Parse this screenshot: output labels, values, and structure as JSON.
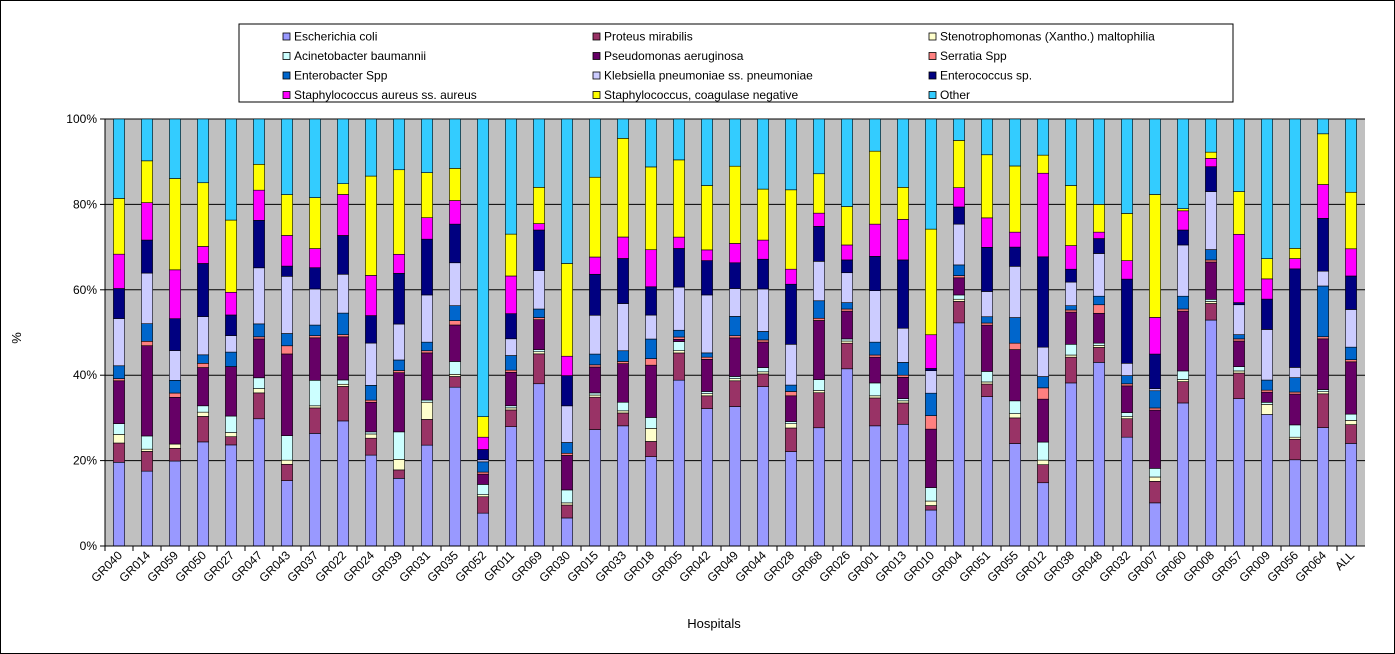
{
  "chart_data": {
    "type": "bar",
    "stacked": true,
    "percent": true,
    "xlabel": "Hospitals",
    "ylabel": "%",
    "ylim": [
      0,
      100
    ],
    "yticks": [
      "0%",
      "20%",
      "40%",
      "60%",
      "80%",
      "100%"
    ],
    "grid": true,
    "legend_position": "top",
    "plot_background": "#c0c0c0",
    "categories": [
      "GR040",
      "GR014",
      "GR059",
      "GR050",
      "GR027",
      "GR047",
      "GR043",
      "GR037",
      "GR022",
      "GR024",
      "GR039",
      "GR031",
      "GR035",
      "GR052",
      "GR011",
      "GR069",
      "GR030",
      "GR015",
      "GR033",
      "GR018",
      "GR005",
      "GR042",
      "GR049",
      "GR044",
      "GR028",
      "GR068",
      "GR026",
      "GR001",
      "GR013",
      "GR010",
      "GR004",
      "GR051",
      "GR055",
      "GR012",
      "GR038",
      "GR048",
      "GR032",
      "GR007",
      "GR060",
      "GR008",
      "GR057",
      "GR009",
      "GR056",
      "GR064",
      "ALL"
    ],
    "series": [
      {
        "name": "Escherichia coli",
        "color": "#9999ff",
        "values": [
          19.5,
          17,
          20,
          24.5,
          24.5,
          29.5,
          16,
          26.5,
          29,
          21.5,
          16,
          23.5,
          37,
          8,
          28.5,
          38,
          6.5,
          27,
          28,
          20.5,
          36.5,
          32,
          32.5,
          37.5,
          22,
          27,
          41.5,
          28,
          28.5,
          8,
          52,
          35.5,
          24,
          14,
          38,
          43,
          26.5,
          10,
          33.5,
          54.5,
          34.5,
          32.5,
          21,
          28,
          24.5
        ]
      },
      {
        "name": "Proteus mirabilis",
        "color": "#993366",
        "values": [
          4.5,
          4.5,
          3,
          6,
          2,
          6,
          4,
          6,
          8,
          4,
          2,
          6,
          2.5,
          4,
          4,
          7,
          3,
          7.5,
          3,
          3.5,
          6,
          3,
          6,
          3,
          5.5,
          8,
          6,
          6.5,
          5,
          1,
          5,
          3,
          6,
          4,
          6,
          3.5,
          4.5,
          5,
          5,
          4,
          6,
          0,
          5,
          8,
          4.5
        ]
      },
      {
        "name": "Stenotrophomonas (Xantho.) maltophilia",
        "color": "#ffffcc",
        "values": [
          2,
          0.5,
          1,
          1,
          1,
          1,
          1,
          0.5,
          0.5,
          1,
          2.5,
          4,
          0.5,
          0.5,
          0.5,
          0.5,
          0.5,
          0.5,
          0.5,
          3,
          0.5,
          0.5,
          0.5,
          0.5,
          1,
          0.5,
          0.5,
          0.5,
          0.5,
          1,
          0.5,
          0.5,
          1,
          1,
          0.5,
          0.5,
          0.5,
          1,
          0.5,
          0.5,
          0.5,
          2.5,
          0.5,
          0.5,
          1
        ]
      },
      {
        "name": "Acinetobacter baumannii",
        "color": "#ccffff",
        "values": [
          2.5,
          3,
          0,
          1.5,
          4,
          2.5,
          6,
          6,
          1,
          0.5,
          6.5,
          0.5,
          3,
          2.5,
          0.5,
          0.5,
          3,
          0.5,
          2,
          2.5,
          2,
          0.5,
          0.5,
          1,
          0.5,
          2.5,
          0.5,
          3,
          0.5,
          3,
          1,
          2.5,
          3,
          4,
          2.5,
          0.5,
          1,
          2,
          2,
          0.5,
          1,
          0.5,
          3,
          0.5,
          1.5
        ]
      },
      {
        "name": "Pseudomonas aeruginosa",
        "color": "#660066",
        "values": [
          10,
          20.5,
          11,
          9,
          12,
          9,
          20,
          10,
          10,
          7,
          14,
          11,
          8.5,
          2.5,
          8,
          7,
          8,
          6,
          9,
          12,
          0.5,
          7.5,
          9,
          6,
          6,
          13.5,
          6.5,
          6,
          5,
          13,
          4,
          11,
          12,
          9.5,
          7.5,
          7,
          6.5,
          13.5,
          14,
          9,
          6,
          2.5,
          7.5,
          12,
          12.5
        ]
      },
      {
        "name": "Serratia Spp",
        "color": "#ff8080",
        "values": [
          0.5,
          1,
          1,
          1,
          0,
          0.5,
          2,
          0.5,
          0.5,
          0.5,
          0.5,
          0.5,
          1,
          0.5,
          0.5,
          0.5,
          0.5,
          0.5,
          0.5,
          1.5,
          0.5,
          0.5,
          0.5,
          0.5,
          1,
          0.5,
          0.5,
          0.5,
          0.5,
          3,
          0.5,
          0.5,
          1.5,
          2.5,
          0.5,
          2,
          0.5,
          0.5,
          0.5,
          0.5,
          0.5,
          0.5,
          0.5,
          0.5,
          0.5
        ]
      },
      {
        "name": "Enterobacter Spp",
        "color": "#0066cc",
        "values": [
          3,
          4,
          3,
          2,
          3.5,
          3,
          3,
          2.5,
          5,
          3.5,
          2.5,
          2,
          3.5,
          2.5,
          3.5,
          2,
          2.5,
          2.5,
          2.5,
          4.5,
          1.5,
          1,
          4.5,
          2,
          1.5,
          4,
          1.5,
          3,
          3,
          5,
          2.5,
          1.5,
          6,
          2.5,
          1,
          2,
          2,
          4,
          3,
          2.5,
          1,
          2.5,
          3.5,
          12,
          3
        ]
      },
      {
        "name": "Klebsiella pneumoniae ss. pneumoniae",
        "color": "#ccccff",
        "values": [
          11,
          11.5,
          7,
          9,
          4,
          13,
          14,
          8.5,
          9,
          10,
          8.5,
          11,
          10,
          0.5,
          4,
          9,
          8.5,
          9,
          11,
          5.5,
          9.5,
          13.5,
          6.5,
          10,
          9.5,
          9,
          7,
          12,
          8,
          5,
          9.5,
          6,
          12,
          6.5,
          5.5,
          10,
          3,
          0.5,
          12,
          14,
          7,
          12.5,
          2.5,
          3.5,
          9
        ]
      },
      {
        "name": "Enterococcus sp.",
        "color": "#000080",
        "values": [
          7,
          7.5,
          7.5,
          12.5,
          5,
          11,
          2.5,
          5,
          9,
          6.5,
          12,
          13,
          9,
          2.5,
          6,
          9.5,
          7,
          9.5,
          10.5,
          6.5,
          8.5,
          8,
          6,
          7,
          14,
          8,
          3,
          8,
          16,
          0.5,
          4,
          10.5,
          4.5,
          20,
          3,
          3.5,
          20.5,
          8,
          3.5,
          6,
          0.5,
          7.5,
          24,
          12.5,
          8
        ]
      },
      {
        "name": "Staphylococcus aureus ss. aureus",
        "color": "#ff00ff",
        "values": [
          8,
          8.5,
          11.5,
          4,
          5.5,
          7,
          7.5,
          4.5,
          9.5,
          9.5,
          4.5,
          5,
          5.5,
          3,
          9,
          1.5,
          4.5,
          4,
          5,
          8.5,
          2.5,
          2.5,
          4.5,
          4.5,
          3.5,
          3,
          3.5,
          7.5,
          9.5,
          7.5,
          4.5,
          7,
          3.5,
          18.5,
          5.5,
          1.5,
          4.5,
          8.5,
          4.5,
          2,
          16,
          5,
          2.5,
          8,
          6.5
        ]
      },
      {
        "name": "Staphylococcus, coagulase negative",
        "color": "#ffff00",
        "values": [
          13,
          9.5,
          21.5,
          15,
          17.5,
          6,
          10,
          12,
          2.5,
          23.5,
          20,
          10.5,
          7.5,
          5,
          10,
          8.5,
          21.5,
          18.5,
          23,
          19,
          17,
          15,
          18,
          12,
          18.5,
          9,
          9,
          17,
          7.5,
          23.5,
          11,
          15,
          15.5,
          4,
          14,
          6.5,
          11.5,
          28.5,
          0.5,
          1.5,
          10,
          5,
          2.5,
          12,
          13.5
        ]
      },
      {
        "name": "Other",
        "color": "#33ccff",
        "values": [
          18.5,
          9.5,
          14,
          15,
          24.5,
          10.5,
          18.5,
          18.5,
          15,
          13.5,
          12,
          12.5,
          11.5,
          72.5,
          27.5,
          16,
          33.5,
          13.5,
          4.5,
          11,
          9,
          15.5,
          11,
          16.5,
          16.5,
          12.5,
          20.5,
          7.5,
          16,
          24.5,
          5,
          8.5,
          11,
          8,
          15.5,
          20,
          23,
          17.5,
          21,
          8,
          17,
          34.5,
          31.5,
          3.5,
          17.5
        ]
      }
    ]
  }
}
